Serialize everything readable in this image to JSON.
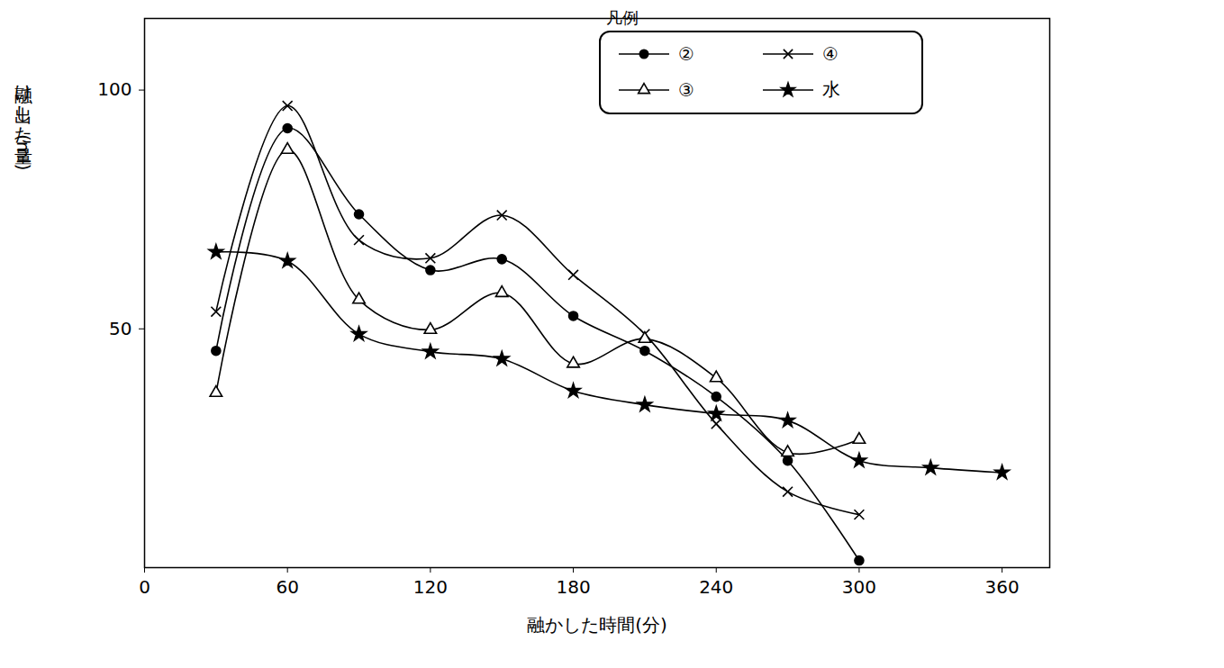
{
  "chart_data": {
    "type": "line",
    "x_label": "融かした時間(分)",
    "y_label": "融け出した量(ml)",
    "legend_title": "凡例",
    "legend": "top-right",
    "grid": false,
    "xlim": [
      0,
      380
    ],
    "xticks": [
      0,
      60,
      120,
      180,
      240,
      300,
      360
    ],
    "ylim": [
      0,
      115
    ],
    "yticks": [
      50,
      100
    ],
    "series": [
      {
        "name": "②",
        "color": "#000000",
        "marker": "circle",
        "line_style": "solid",
        "x": [
          30,
          60,
          90,
          120,
          150,
          180,
          210,
          240,
          270,
          300
        ],
        "values": [
          45.4,
          92,
          74,
          62.3,
          64.6,
          52.7,
          45.4,
          35.8,
          22.4,
          1.5
        ]
      },
      {
        "name": "④",
        "color": "#000000",
        "marker": "times",
        "line_style": "solid",
        "x": [
          30,
          60,
          90,
          120,
          150,
          180,
          210,
          240,
          270,
          300
        ],
        "values": [
          53.6,
          96.7,
          68.6,
          64.8,
          73.8,
          61.3,
          48.9,
          30.1,
          15.9,
          11.1
        ]
      },
      {
        "name": "③",
        "color": "#000000",
        "marker": "triangle",
        "line_style": "solid",
        "x": [
          30,
          60,
          90,
          120,
          150,
          180,
          210,
          240,
          270,
          300
        ],
        "values": [
          36.6,
          87.5,
          56.1,
          49.8,
          57.5,
          42.7,
          47.9,
          39.7,
          24.1,
          26.8
        ]
      },
      {
        "name": "水",
        "color": "#000000",
        "marker": "star",
        "line_style": "solid",
        "x": [
          30,
          60,
          90,
          120,
          150,
          180,
          210,
          240,
          270,
          300,
          330,
          360
        ],
        "values": [
          66.1,
          64.2,
          48.9,
          45.2,
          43.7,
          37,
          34.1,
          32.2,
          30.8,
          22.4,
          20.9,
          19.9
        ]
      }
    ]
  }
}
